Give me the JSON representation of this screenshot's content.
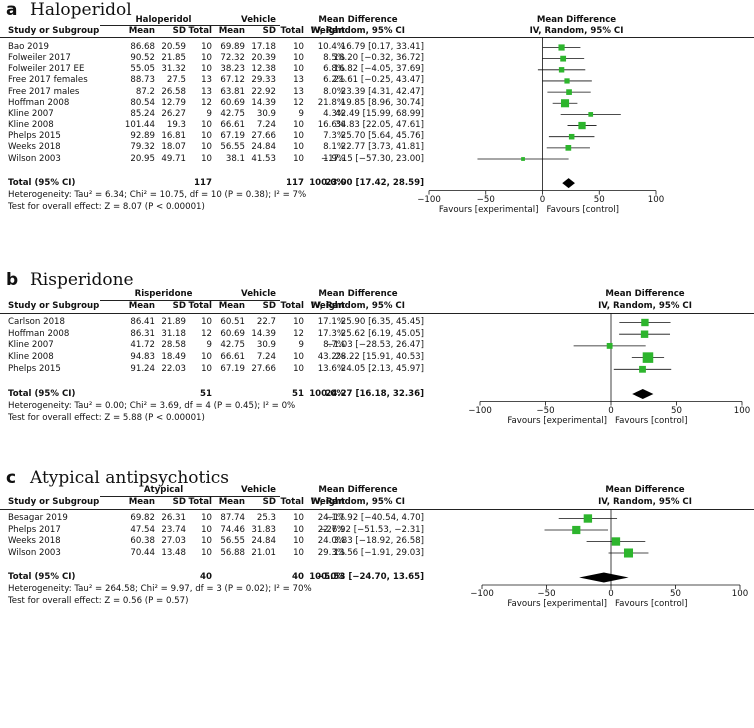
{
  "panels": [
    {
      "letter": "a",
      "title": "Haloperidol",
      "group_header": "Haloperidol",
      "control_header": "Vehicle",
      "col_headers": [
        "Study or Subgroup",
        "Mean",
        "SD",
        "Total",
        "Mean",
        "SD",
        "Total",
        "Weight"
      ],
      "md_header_1": "Mean Difference",
      "md_header_2": "IV, Random, 95% CI",
      "plot_header_1": "Mean Difference",
      "plot_header_2": "IV, Random, 95% CI",
      "rows": [
        {
          "study": "Bao 2019",
          "m1": "86.68",
          "sd1": "20.59",
          "n1": "10",
          "m2": "69.89",
          "sd2": "17.18",
          "n2": "10",
          "weight": "10.4%",
          "ci": "16.79 [0.17, 33.41]",
          "est": 16.79,
          "lo": 0.17,
          "hi": 33.41
        },
        {
          "study": "Folweiler 2017",
          "m1": "90.52",
          "sd1": "21.85",
          "n1": "10",
          "m2": "72.32",
          "sd2": "20.39",
          "n2": "10",
          "weight": "8.5%",
          "ci": "18.20 [−0.32, 36.72]",
          "est": 18.2,
          "lo": -0.32,
          "hi": 36.72
        },
        {
          "study": "Folweiler 2017 EE",
          "m1": "55.05",
          "sd1": "31.32",
          "n1": "10",
          "m2": "38.23",
          "sd2": "12.38",
          "n2": "10",
          "weight": "6.8%",
          "ci": "16.82 [−4.05, 37.69]",
          "est": 16.82,
          "lo": -4.05,
          "hi": 37.69
        },
        {
          "study": "Free 2017 females",
          "m1": "88.73",
          "sd1": "27.5",
          "n1": "13",
          "m2": "67.12",
          "sd2": "29.33",
          "n2": "13",
          "weight": "6.2%",
          "ci": "21.61 [−0.25, 43.47]",
          "est": 21.61,
          "lo": -0.25,
          "hi": 43.47
        },
        {
          "study": "Free 2017 males",
          "m1": "87.2",
          "sd1": "26.58",
          "n1": "13",
          "m2": "63.81",
          "sd2": "22.92",
          "n2": "13",
          "weight": "8.0%",
          "ci": "23.39 [4.31, 42.47]",
          "est": 23.39,
          "lo": 4.31,
          "hi": 42.47
        },
        {
          "study": "Hoffman 2008",
          "m1": "80.54",
          "sd1": "12.79",
          "n1": "12",
          "m2": "60.69",
          "sd2": "14.39",
          "n2": "12",
          "weight": "21.8%",
          "ci": "19.85 [8.96, 30.74]",
          "est": 19.85,
          "lo": 8.96,
          "hi": 30.74
        },
        {
          "study": "Kline 2007",
          "m1": "85.24",
          "sd1": "26.27",
          "n1": "9",
          "m2": "42.75",
          "sd2": "30.9",
          "n2": "9",
          "weight": "4.3%",
          "ci": "42.49 [15.99, 68.99]",
          "est": 42.49,
          "lo": 15.99,
          "hi": 68.99
        },
        {
          "study": "Kline 2008",
          "m1": "101.44",
          "sd1": "19.3",
          "n1": "10",
          "m2": "66.61",
          "sd2": "7.24",
          "n2": "10",
          "weight": "16.6%",
          "ci": "34.83 [22.05, 47.61]",
          "est": 34.83,
          "lo": 22.05,
          "hi": 47.61
        },
        {
          "study": "Phelps 2015",
          "m1": "92.89",
          "sd1": "16.81",
          "n1": "10",
          "m2": "67.19",
          "sd2": "27.66",
          "n2": "10",
          "weight": "7.3%",
          "ci": "25.70 [5.64, 45.76]",
          "est": 25.7,
          "lo": 5.64,
          "hi": 45.76
        },
        {
          "study": "Weeks 2018",
          "m1": "79.32",
          "sd1": "18.07",
          "n1": "10",
          "m2": "56.55",
          "sd2": "24.84",
          "n2": "10",
          "weight": "8.1%",
          "ci": "22.77 [3.73, 41.81]",
          "est": 22.77,
          "lo": 3.73,
          "hi": 41.81
        },
        {
          "study": "Wilson 2003",
          "m1": "20.95",
          "sd1": "49.71",
          "n1": "10",
          "m2": "38.1",
          "sd2": "41.53",
          "n2": "10",
          "weight": "1.9%",
          "ci": "−17.15 [−57.30, 23.00]",
          "est": -17.15,
          "lo": -57.3,
          "hi": 23.0
        }
      ],
      "total": {
        "label": "Total (95% CI)",
        "n1": "117",
        "n2": "117",
        "weight": "100.0%",
        "ci": "23.00 [17.42, 28.59]",
        "est": 23.0,
        "lo": 17.42,
        "hi": 28.59
      },
      "heterogeneity": "Heterogeneity: Tau² = 6.34; Chi² = 10.75, df = 10 (P = 0.38); I² = 7%",
      "overall": "Test for overall effect: Z = 8.07 (P < 0.00001)",
      "axis": {
        "min": -100,
        "max": 100,
        "ticks": [
          "−100",
          "−50",
          "0",
          "50",
          "100"
        ],
        "tick_values": [
          -100,
          -50,
          0,
          50,
          100
        ],
        "left_label": "Favours [experimental]",
        "right_label": "Favours [control]"
      }
    },
    {
      "letter": "b",
      "title": "Risperidone",
      "group_header": "Risperidone",
      "control_header": "Vehicle",
      "col_headers": [
        "Study or Subgroup",
        "Mean",
        "SD",
        "Total",
        "Mean",
        "SD",
        "Total",
        "Weight"
      ],
      "md_header_1": "Mean Difference",
      "md_header_2": "IV, Random, 95% CI",
      "plot_header_1": "Mean Difference",
      "plot_header_2": "IV, Random, 95% CI",
      "rows": [
        {
          "study": "Carlson 2018",
          "m1": "86.41",
          "sd1": "21.89",
          "n1": "10",
          "m2": "60.51",
          "sd2": "22.7",
          "n2": "10",
          "weight": "17.1%",
          "ci": "25.90 [6.35, 45.45]",
          "est": 25.9,
          "lo": 6.35,
          "hi": 45.45
        },
        {
          "study": "Hoffman 2008",
          "m1": "86.31",
          "sd1": "31.18",
          "n1": "12",
          "m2": "60.69",
          "sd2": "14.39",
          "n2": "12",
          "weight": "17.3%",
          "ci": "25.62 [6.19, 45.05]",
          "est": 25.62,
          "lo": 6.19,
          "hi": 45.05
        },
        {
          "study": "Kline 2007",
          "m1": "41.72",
          "sd1": "28.58",
          "n1": "9",
          "m2": "42.75",
          "sd2": "30.9",
          "n2": "9",
          "weight": "8.7%",
          "ci": "−1.03 [−28.53, 26.47]",
          "est": -1.03,
          "lo": -28.53,
          "hi": 26.47
        },
        {
          "study": "Kline 2008",
          "m1": "94.83",
          "sd1": "18.49",
          "n1": "10",
          "m2": "66.61",
          "sd2": "7.24",
          "n2": "10",
          "weight": "43.2%",
          "ci": "28.22 [15.91, 40.53]",
          "est": 28.22,
          "lo": 15.91,
          "hi": 40.53
        },
        {
          "study": "Phelps 2015",
          "m1": "91.24",
          "sd1": "22.03",
          "n1": "10",
          "m2": "67.19",
          "sd2": "27.66",
          "n2": "10",
          "weight": "13.6%",
          "ci": "24.05 [2.13, 45.97]",
          "est": 24.05,
          "lo": 2.13,
          "hi": 45.97
        }
      ],
      "total": {
        "label": "Total (95% CI)",
        "n1": "51",
        "n2": "51",
        "weight": "100.0%",
        "ci": "24.27 [16.18, 32.36]",
        "est": 24.27,
        "lo": 16.18,
        "hi": 32.36
      },
      "heterogeneity": "Heterogeneity: Tau² = 0.00; Chi² = 3.69, df = 4 (P = 0.45); I² = 0%",
      "overall": "Test for overall effect: Z = 5.88 (P < 0.00001)",
      "axis": {
        "min": -100,
        "max": 100,
        "ticks": [
          "−100",
          "−50",
          "0",
          "50",
          "100"
        ],
        "tick_values": [
          -100,
          -50,
          0,
          50,
          100
        ],
        "left_label": "Favours [experimental]",
        "right_label": "Favours [control]"
      }
    },
    {
      "letter": "c",
      "title": "Atypical antipsychotics",
      "group_header": "Atypical",
      "control_header": "Vehicle",
      "col_headers": [
        "Study or Subgroup",
        "Mean",
        "SD",
        "Total",
        "Mean",
        "SD",
        "Total",
        "Weight"
      ],
      "md_header_1": "Mean Difference",
      "md_header_2": "IV, Random, 95% CI",
      "plot_header_1": "Mean Difference",
      "plot_header_2": "IV, Random, 95% CI",
      "rows": [
        {
          "study": "Besagar 2019",
          "m1": "69.82",
          "sd1": "26.31",
          "n1": "10",
          "m2": "87.74",
          "sd2": "25.3",
          "n2": "10",
          "weight": "24.1%",
          "ci": "−17.92 [−40.54, 4.70]",
          "est": -17.92,
          "lo": -40.54,
          "hi": 4.7
        },
        {
          "study": "Phelps 2017",
          "m1": "47.54",
          "sd1": "23.74",
          "n1": "10",
          "m2": "74.46",
          "sd2": "31.83",
          "n2": "10",
          "weight": "22.7%",
          "ci": "−26.92 [−51.53, −2.31]",
          "est": -26.92,
          "lo": -51.53,
          "hi": -2.31
        },
        {
          "study": "Weeks 2018",
          "m1": "60.38",
          "sd1": "27.03",
          "n1": "10",
          "m2": "56.55",
          "sd2": "24.84",
          "n2": "10",
          "weight": "24.0%",
          "ci": "3.83 [−18.92, 26.58]",
          "est": 3.83,
          "lo": -18.92,
          "hi": 26.58
        },
        {
          "study": "Wilson 2003",
          "m1": "70.44",
          "sd1": "13.48",
          "n1": "10",
          "m2": "56.88",
          "sd2": "21.01",
          "n2": "10",
          "weight": "29.3%",
          "ci": "13.56 [−1.91, 29.03]",
          "est": 13.56,
          "lo": -1.91,
          "hi": 29.03
        }
      ],
      "total": {
        "label": "Total (95% CI)",
        "n1": "40",
        "n2": "40",
        "weight": "100.0%",
        "ci": "−5.53 [−24.70, 13.65]",
        "est": -5.53,
        "lo": -24.7,
        "hi": 13.65
      },
      "heterogeneity": "Heterogeneity: Tau² = 264.58; Chi² = 9.97, df = 3 (P = 0.02); I² = 70%",
      "overall": "Test for overall effect: Z = 0.56 (P = 0.57)",
      "axis": {
        "min": -100,
        "max": 100,
        "ticks": [
          "−100",
          "−50",
          "0",
          "50",
          "100"
        ],
        "tick_values": [
          -100,
          -50,
          0,
          50,
          100
        ],
        "left_label": "Favours [experimental]",
        "right_label": "Favours [control]"
      }
    }
  ],
  "colors": {
    "marker": "#2db52d",
    "diamond": "#000000",
    "line": "#111111"
  },
  "chart_data": [
    {
      "type": "forest",
      "title": "Haloperidol",
      "xlabel_left": "Favours [experimental]",
      "xlabel_right": "Favours [control]",
      "xlim": [
        -100,
        100
      ],
      "studies": [
        "Bao 2019",
        "Folweiler 2017",
        "Folweiler 2017 EE",
        "Free 2017 females",
        "Free 2017 males",
        "Hoffman 2008",
        "Kline 2007",
        "Kline 2008",
        "Phelps 2015",
        "Weeks 2018",
        "Wilson 2003"
      ],
      "estimates": [
        16.79,
        18.2,
        16.82,
        21.61,
        23.39,
        19.85,
        42.49,
        34.83,
        25.7,
        22.77,
        -17.15
      ],
      "lower": [
        0.17,
        -0.32,
        -4.05,
        -0.25,
        4.31,
        8.96,
        15.99,
        22.05,
        5.64,
        3.73,
        -57.3
      ],
      "upper": [
        33.41,
        36.72,
        37.69,
        43.47,
        42.47,
        30.74,
        68.99,
        47.61,
        45.76,
        41.81,
        23.0
      ],
      "weights": [
        10.4,
        8.5,
        6.8,
        6.2,
        8.0,
        21.8,
        4.3,
        16.6,
        7.3,
        8.1,
        1.9
      ],
      "pooled": {
        "estimate": 23.0,
        "lower": 17.42,
        "upper": 28.59
      }
    },
    {
      "type": "forest",
      "title": "Risperidone",
      "xlabel_left": "Favours [experimental]",
      "xlabel_right": "Favours [control]",
      "xlim": [
        -100,
        100
      ],
      "studies": [
        "Carlson 2018",
        "Hoffman 2008",
        "Kline 2007",
        "Kline 2008",
        "Phelps 2015"
      ],
      "estimates": [
        25.9,
        25.62,
        -1.03,
        28.22,
        24.05
      ],
      "lower": [
        6.35,
        6.19,
        -28.53,
        15.91,
        2.13
      ],
      "upper": [
        45.45,
        45.05,
        26.47,
        40.53,
        45.97
      ],
      "weights": [
        17.1,
        17.3,
        8.7,
        43.2,
        13.6
      ],
      "pooled": {
        "estimate": 24.27,
        "lower": 16.18,
        "upper": 32.36
      }
    },
    {
      "type": "forest",
      "title": "Atypical antipsychotics",
      "xlabel_left": "Favours [experimental]",
      "xlabel_right": "Favours [control]",
      "xlim": [
        -100,
        100
      ],
      "studies": [
        "Besagar 2019",
        "Phelps 2017",
        "Weeks 2018",
        "Wilson 2003"
      ],
      "estimates": [
        -17.92,
        -26.92,
        3.83,
        13.56
      ],
      "lower": [
        -40.54,
        -51.53,
        -18.92,
        -1.91
      ],
      "upper": [
        4.7,
        -2.31,
        26.58,
        29.03
      ],
      "weights": [
        24.1,
        22.7,
        24.0,
        29.3
      ],
      "pooled": {
        "estimate": -5.53,
        "lower": -24.7,
        "upper": 13.65
      }
    }
  ]
}
